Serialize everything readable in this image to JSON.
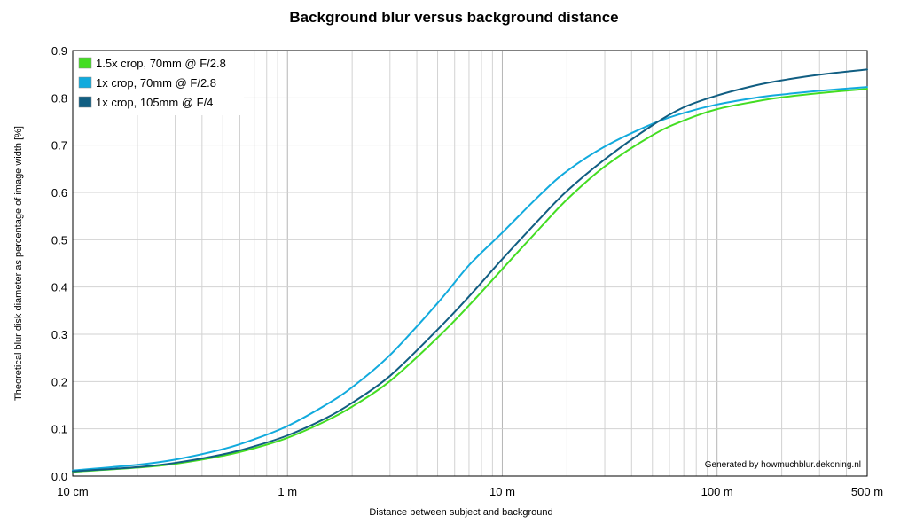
{
  "chart_data": {
    "type": "line",
    "title": "Background blur versus background distance",
    "xlabel": "Distance between subject and background",
    "ylabel": "Theoretical blur disk diameter as percentage of image width [%]",
    "x_scale": "log",
    "x_unit": "m",
    "xlim": [
      0.1,
      500
    ],
    "ylim": [
      0,
      0.9
    ],
    "grid": true,
    "legend_position": "top-left",
    "x_ticks": [
      {
        "value": 0.1,
        "label": "10 cm"
      },
      {
        "value": 1,
        "label": "1 m"
      },
      {
        "value": 10,
        "label": "10 m"
      },
      {
        "value": 100,
        "label": "100 m"
      },
      {
        "value": 500,
        "label": "500 m"
      }
    ],
    "y_ticks": [
      {
        "value": 0,
        "label": "0.0"
      },
      {
        "value": 0.1,
        "label": "0.1"
      },
      {
        "value": 0.2,
        "label": "0.2"
      },
      {
        "value": 0.3,
        "label": "0.3"
      },
      {
        "value": 0.4,
        "label": "0.4"
      },
      {
        "value": 0.5,
        "label": "0.5"
      },
      {
        "value": 0.6,
        "label": "0.6"
      },
      {
        "value": 0.7,
        "label": "0.7"
      },
      {
        "value": 0.8,
        "label": "0.8"
      },
      {
        "value": 0.9,
        "label": "0.9"
      }
    ],
    "annotation": "Generated by howmuchblur.dekoning.nl",
    "series": [
      {
        "name": "1.5x crop, 70mm @ F/2.8",
        "color": "#44dd22",
        "points": [
          [
            0.1,
            0.009
          ],
          [
            0.2,
            0.018
          ],
          [
            0.3,
            0.026
          ],
          [
            0.5,
            0.043
          ],
          [
            0.7,
            0.059
          ],
          [
            1,
            0.081
          ],
          [
            1.5,
            0.116
          ],
          [
            2,
            0.147
          ],
          [
            3,
            0.201
          ],
          [
            5,
            0.293
          ],
          [
            7,
            0.361
          ],
          [
            10,
            0.438
          ],
          [
            15,
            0.525
          ],
          [
            20,
            0.585
          ],
          [
            30,
            0.655
          ],
          [
            50,
            0.721
          ],
          [
            70,
            0.752
          ],
          [
            100,
            0.776
          ],
          [
            150,
            0.792
          ],
          [
            200,
            0.801
          ],
          [
            300,
            0.81
          ],
          [
            500,
            0.819
          ]
        ]
      },
      {
        "name": "1x crop, 70mm @ F/2.8",
        "color": "#11aadd",
        "points": [
          [
            0.1,
            0.012
          ],
          [
            0.2,
            0.024
          ],
          [
            0.3,
            0.035
          ],
          [
            0.5,
            0.057
          ],
          [
            0.7,
            0.078
          ],
          [
            1,
            0.106
          ],
          [
            1.5,
            0.15
          ],
          [
            2,
            0.188
          ],
          [
            3,
            0.256
          ],
          [
            5,
            0.366
          ],
          [
            7,
            0.446
          ],
          [
            10,
            0.515
          ],
          [
            15,
            0.595
          ],
          [
            20,
            0.645
          ],
          [
            30,
            0.697
          ],
          [
            50,
            0.745
          ],
          [
            70,
            0.768
          ],
          [
            100,
            0.786
          ],
          [
            150,
            0.8
          ],
          [
            200,
            0.807
          ],
          [
            300,
            0.815
          ],
          [
            500,
            0.823
          ]
        ]
      },
      {
        "name": "1x crop, 105mm @ F/4",
        "color": "#115e82",
        "points": [
          [
            0.1,
            0.01
          ],
          [
            0.2,
            0.019
          ],
          [
            0.3,
            0.028
          ],
          [
            0.5,
            0.046
          ],
          [
            0.7,
            0.063
          ],
          [
            1,
            0.086
          ],
          [
            1.5,
            0.122
          ],
          [
            2,
            0.155
          ],
          [
            3,
            0.212
          ],
          [
            5,
            0.31
          ],
          [
            7,
            0.38
          ],
          [
            10,
            0.459
          ],
          [
            15,
            0.545
          ],
          [
            20,
            0.603
          ],
          [
            30,
            0.67
          ],
          [
            50,
            0.742
          ],
          [
            70,
            0.78
          ],
          [
            100,
            0.805
          ],
          [
            150,
            0.826
          ],
          [
            200,
            0.837
          ],
          [
            300,
            0.849
          ],
          [
            500,
            0.86
          ]
        ]
      }
    ]
  }
}
